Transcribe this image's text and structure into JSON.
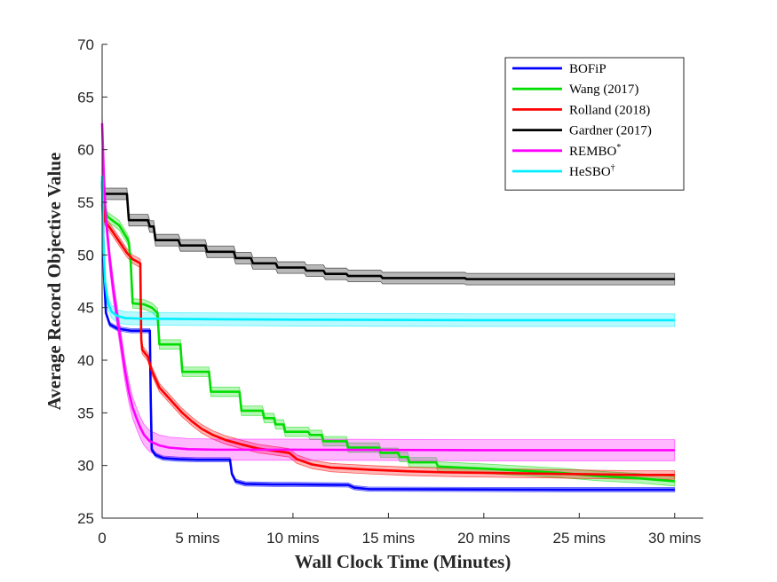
{
  "chart_data": {
    "type": "line",
    "title": "",
    "xlabel": "Wall Clock Time (Minutes)",
    "ylabel": "Average Record Objective Value",
    "xlim": [
      0,
      31.5
    ],
    "ylim": [
      25,
      70
    ],
    "xticks": [
      0,
      5,
      10,
      15,
      20,
      25,
      30
    ],
    "xtick_labels": [
      "0",
      "5 mins",
      "10 mins",
      "15 mins",
      "20 mins",
      "25 mins",
      "30 mins"
    ],
    "yticks": [
      25,
      30,
      35,
      40,
      45,
      50,
      55,
      60,
      65,
      70
    ],
    "ytick_labels": [
      "25",
      "30",
      "35",
      "40",
      "45",
      "50",
      "55",
      "60",
      "65",
      "70"
    ],
    "grid": false,
    "legend_position": "top-right",
    "series": [
      {
        "name": "BOFiP",
        "legend_label": "BOFiP",
        "color": "#0000ff",
        "band": 0.2,
        "points": [
          [
            0,
            57
          ],
          [
            0.1,
            48
          ],
          [
            0.2,
            44.5
          ],
          [
            0.4,
            43.4
          ],
          [
            0.8,
            43.0
          ],
          [
            1.5,
            42.8
          ],
          [
            2.5,
            42.8
          ],
          [
            2.55,
            36
          ],
          [
            2.6,
            31.5
          ],
          [
            2.8,
            31.0
          ],
          [
            3.2,
            30.7
          ],
          [
            4,
            30.6
          ],
          [
            5,
            30.55
          ],
          [
            6.7,
            30.55
          ],
          [
            6.8,
            29.2
          ],
          [
            7.0,
            28.5
          ],
          [
            7.5,
            28.25
          ],
          [
            9,
            28.2
          ],
          [
            10,
            28.2
          ],
          [
            12.9,
            28.15
          ],
          [
            13.2,
            27.9
          ],
          [
            14,
            27.75
          ],
          [
            15,
            27.75
          ],
          [
            20,
            27.72
          ],
          [
            25,
            27.7
          ],
          [
            30,
            27.7
          ]
        ]
      },
      {
        "name": "Wang (2017)",
        "legend_label": "Wang (2017)",
        "color": "#00dd00",
        "band": 0.45,
        "points": [
          [
            0,
            56.5
          ],
          [
            0.1,
            54.5
          ],
          [
            0.3,
            53.6
          ],
          [
            0.6,
            53.2
          ],
          [
            0.9,
            52.8
          ],
          [
            1.1,
            52.2
          ],
          [
            1.3,
            51.6
          ],
          [
            1.4,
            51.2
          ],
          [
            1.5,
            49.2
          ],
          [
            1.6,
            45.4
          ],
          [
            2.2,
            45.3
          ],
          [
            2.6,
            45.0
          ],
          [
            2.9,
            44.5
          ],
          [
            3.0,
            41.5
          ],
          [
            4.1,
            41.5
          ],
          [
            4.2,
            38.9
          ],
          [
            5.6,
            38.9
          ],
          [
            5.7,
            37.0
          ],
          [
            7.2,
            37.0
          ],
          [
            7.3,
            35.2
          ],
          [
            8.4,
            35.2
          ],
          [
            8.5,
            34.5
          ],
          [
            9.0,
            34.5
          ],
          [
            9.1,
            33.9
          ],
          [
            9.5,
            33.9
          ],
          [
            9.6,
            33.2
          ],
          [
            10.8,
            33.2
          ],
          [
            10.9,
            32.9
          ],
          [
            11.5,
            32.9
          ],
          [
            11.6,
            32.3
          ],
          [
            12.8,
            32.3
          ],
          [
            12.9,
            31.7
          ],
          [
            14.5,
            31.7
          ],
          [
            14.6,
            31.2
          ],
          [
            15.5,
            31.2
          ],
          [
            15.6,
            30.8
          ],
          [
            16.0,
            30.8
          ],
          [
            16.1,
            30.3
          ],
          [
            17.5,
            30.3
          ],
          [
            17.6,
            29.9
          ],
          [
            20,
            29.7
          ],
          [
            22,
            29.5
          ],
          [
            24,
            29.3
          ],
          [
            26,
            29.0
          ],
          [
            28,
            28.8
          ],
          [
            30,
            28.5
          ]
        ]
      },
      {
        "name": "Rolland (2018)",
        "legend_label": "Rolland (2018)",
        "color": "#ff0000",
        "band": 0.4,
        "points": [
          [
            0,
            54.8
          ],
          [
            0.15,
            53.2
          ],
          [
            0.4,
            52.6
          ],
          [
            0.7,
            51.8
          ],
          [
            1.0,
            51.0
          ],
          [
            1.3,
            50.2
          ],
          [
            1.6,
            49.6
          ],
          [
            1.9,
            49.3
          ],
          [
            2.0,
            49.2
          ],
          [
            2.05,
            42
          ],
          [
            2.1,
            41.0
          ],
          [
            2.4,
            40.3
          ],
          [
            2.6,
            39.0
          ],
          [
            2.8,
            38.2
          ],
          [
            3.0,
            37.4
          ],
          [
            3.4,
            36.6
          ],
          [
            3.8,
            35.8
          ],
          [
            4.2,
            35.0
          ],
          [
            4.7,
            34.2
          ],
          [
            5.2,
            33.5
          ],
          [
            5.8,
            32.9
          ],
          [
            6.5,
            32.4
          ],
          [
            7.3,
            32.0
          ],
          [
            8.2,
            31.6
          ],
          [
            9.0,
            31.4
          ],
          [
            9.8,
            31.2
          ],
          [
            10.2,
            30.6
          ],
          [
            11,
            30.1
          ],
          [
            12,
            29.8
          ],
          [
            14,
            29.6
          ],
          [
            16,
            29.45
          ],
          [
            18,
            29.35
          ],
          [
            20,
            29.3
          ],
          [
            24,
            29.2
          ],
          [
            28,
            29.1
          ],
          [
            30,
            29.1
          ]
        ]
      },
      {
        "name": "Gardner (2017)",
        "legend_label": "Gardner (2017)",
        "color": "#000000",
        "band": 0.55,
        "points": [
          [
            0,
            56.0
          ],
          [
            0.2,
            55.8
          ],
          [
            1.3,
            55.8
          ],
          [
            1.4,
            53.3
          ],
          [
            2.4,
            53.3
          ],
          [
            2.5,
            52.7
          ],
          [
            2.7,
            52.7
          ],
          [
            2.8,
            51.4
          ],
          [
            4.0,
            51.4
          ],
          [
            4.1,
            50.9
          ],
          [
            5.4,
            50.9
          ],
          [
            5.5,
            50.3
          ],
          [
            6.9,
            50.3
          ],
          [
            7.0,
            49.7
          ],
          [
            7.8,
            49.7
          ],
          [
            7.9,
            49.2
          ],
          [
            9.1,
            49.2
          ],
          [
            9.2,
            48.8
          ],
          [
            10.6,
            48.8
          ],
          [
            10.7,
            48.5
          ],
          [
            11.6,
            48.5
          ],
          [
            11.7,
            48.2
          ],
          [
            12.8,
            48.2
          ],
          [
            12.9,
            48.0
          ],
          [
            14.6,
            48.0
          ],
          [
            14.7,
            47.8
          ],
          [
            19.0,
            47.8
          ],
          [
            19.1,
            47.7
          ],
          [
            30,
            47.7
          ]
        ]
      },
      {
        "name": "REMBO*",
        "legend_label": "REMBO",
        "legend_superscript": "*",
        "color": "#ff00ff",
        "band": 1.0,
        "points": [
          [
            0,
            62.5
          ],
          [
            0.1,
            57
          ],
          [
            0.2,
            53.5
          ],
          [
            0.4,
            49.5
          ],
          [
            0.6,
            46.5
          ],
          [
            0.8,
            44
          ],
          [
            1.0,
            41.5
          ],
          [
            1.2,
            39.0
          ],
          [
            1.4,
            37.0
          ],
          [
            1.6,
            35.5
          ],
          [
            1.8,
            34.5
          ],
          [
            2.0,
            33.6
          ],
          [
            2.2,
            32.9
          ],
          [
            2.5,
            32.3
          ],
          [
            3.0,
            31.9
          ],
          [
            3.5,
            31.7
          ],
          [
            4.5,
            31.55
          ],
          [
            6,
            31.5
          ],
          [
            10,
            31.5
          ],
          [
            20,
            31.45
          ],
          [
            30,
            31.45
          ]
        ]
      },
      {
        "name": "HeSBO†",
        "legend_label": "HeSBO",
        "legend_superscript": "†",
        "color": "#00eeff",
        "band": 0.6,
        "points": [
          [
            0,
            57.5
          ],
          [
            0.05,
            52
          ],
          [
            0.15,
            47.5
          ],
          [
            0.3,
            45.5
          ],
          [
            0.5,
            44.6
          ],
          [
            0.8,
            44.2
          ],
          [
            1.2,
            44.0
          ],
          [
            2,
            43.95
          ],
          [
            5,
            43.9
          ],
          [
            10,
            43.85
          ],
          [
            20,
            43.8
          ],
          [
            30,
            43.8
          ]
        ]
      }
    ]
  }
}
